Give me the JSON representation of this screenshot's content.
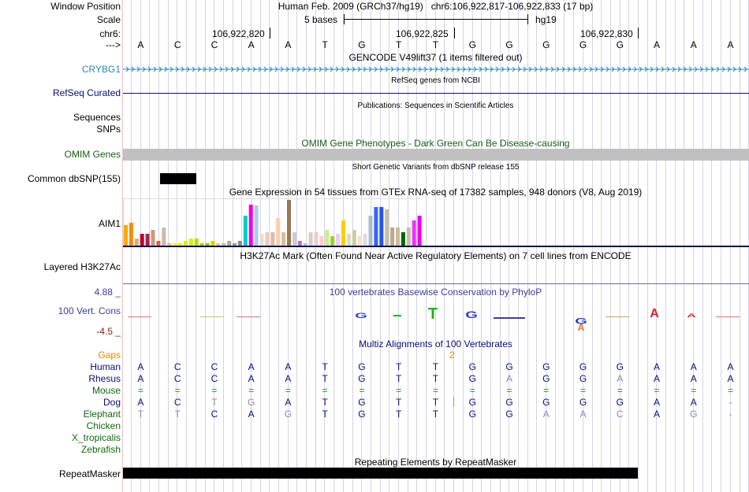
{
  "header": {
    "window_position_label": "Window Position",
    "window_position_value": "Human Feb. 2009 (GRCh37/hg19)   chr6:106,922,817-106,922,833 (17 bp)",
    "scale_label": "Scale",
    "scale_bar_text": "5 bases",
    "scale_assembly": "hg19",
    "chrom_label": "chr6:",
    "direction_label": "--->",
    "coords": [
      "106,922,820",
      "106,922,825",
      "106,922,830"
    ]
  },
  "bases": [
    "A",
    "C",
    "C",
    "A",
    "A",
    "T",
    "G",
    "T",
    "T",
    "G",
    "G",
    "G",
    "G",
    "G",
    "A",
    "A",
    "A"
  ],
  "tracks": {
    "gencode": {
      "title": "GENCODE V49lift37 (1 items filtered out)",
      "label": "CRYBG1",
      "color": "#2d88b5"
    },
    "refseq": {
      "title": "RefSeq genes from NCBI",
      "label": "RefSeq Curated",
      "color": "#0c0c78"
    },
    "publications": {
      "title": "Publications: Sequences in Scientific Articles",
      "label_line1": "Sequences",
      "label_line2": "SNPs"
    },
    "omim": {
      "title": "OMIM Gene Phenotypes - Dark Green Can Be Disease-causing",
      "label": "OMIM Genes",
      "color": "#1a5c1a"
    },
    "dbsnp": {
      "title": "Short Genetic Variants from dbSNP release 155",
      "label": "Common dbSNP(155)"
    },
    "gtex": {
      "title": "Gene Expression in 54 tissues from GTEx RNA-seq of 17382 samples, 948 donors (V8, Aug 2019)",
      "label": "AIM1",
      "values": [
        0.45,
        0.5,
        0.15,
        0.25,
        0.25,
        0.35,
        0.1,
        0.4,
        0.05,
        0.05,
        0.05,
        0.1,
        0.15,
        0.15,
        0.05,
        0.05,
        0.1,
        0.05,
        0.05,
        0.1,
        0.05,
        0.1,
        0.65,
        0.9,
        0.88,
        0.25,
        0.3,
        0.3,
        0.6,
        0.3,
        1.0,
        0.3,
        0.1,
        0.05,
        0.3,
        0.3,
        0.2,
        0.35,
        0.2,
        0.25,
        0.55,
        0.25,
        0.35,
        0.2,
        0.25,
        0.65,
        0.85,
        0.85,
        0.8,
        0.4,
        0.4,
        0.3,
        0.4,
        0.55,
        0.65
      ],
      "colors": [
        "#ffaa00",
        "#ff8800",
        "#ddaa77",
        "#bb0033",
        "#aa2255",
        "#cc9977",
        "#cc6655",
        "#ccbbaa",
        "#ddbb99",
        "#ffff00",
        "#eeee00",
        "#ddee00",
        "#ccee22",
        "#bbdd00",
        "#aacc00",
        "#99bb00",
        "#ddcc00",
        "#cccc99",
        "#bbbbaa",
        "#aaaa99",
        "#999999",
        "#888888",
        "#00cccc",
        "#ee00ee",
        "#aaccee",
        "#eeddcc",
        "#eeccbb",
        "#ddbbaa",
        "#ffccaa",
        "#ddbb99",
        "#997755",
        "#cccccc",
        "#aa77cc",
        "#99ccee",
        "#ddccbb",
        "#eecccc",
        "#ffcccc",
        "#ccee88",
        "#99cc33",
        "#eeccee",
        "#ffcc00",
        "#ddddbb",
        "#ccccaa",
        "#ffddcc",
        "#dddddd",
        "#aabbcc",
        "#3366ff",
        "#2255ee",
        "#ccbbaa",
        "#bbaa88",
        "#ccbb99",
        "#006600",
        "#ccbbaa",
        "#ee33ff",
        "#ee00ee"
      ]
    },
    "h3k27ac": {
      "title": "H3K27Ac Mark (Often Found Near Active Regulatory Elements) on 7 cell lines from ENCODE",
      "label": "Layered H3K27Ac",
      "color": "#2d2d7a"
    },
    "phylop": {
      "title": "100 vertebrates Basewise Conservation by PhyloP",
      "label": "100 Vert. Cons",
      "max": "4.88 _",
      "min": "-4.5 _",
      "title_color": "#3d3d99",
      "min_color": "#8b1a1a"
    },
    "multiz": {
      "title": "Multiz Alignments of 100 Vertebrates",
      "gaps_label": "Gaps",
      "gaps_value": "2",
      "species": [
        {
          "name": "Human",
          "color": "#0c0c78",
          "row": [
            "A",
            "C",
            "C",
            "A",
            "A",
            "T",
            "G",
            "T",
            "T",
            "G",
            "G",
            "G",
            "G",
            "G",
            "A",
            "A",
            "A"
          ]
        },
        {
          "name": "Rhesus",
          "color": "#0c0c78",
          "row": [
            "A",
            "C",
            "C",
            "A",
            "A",
            "T",
            "G",
            "T",
            "T",
            "G",
            "A",
            "G",
            "G",
            "A",
            "A",
            "A",
            "A"
          ]
        },
        {
          "name": "Mouse",
          "color": "#0c6c0c",
          "row": [
            "=",
            "=",
            "=",
            "=",
            "=",
            "=",
            "=",
            "=",
            "=",
            "=",
            "=",
            "=",
            "=",
            "=",
            "=",
            "=",
            "="
          ]
        },
        {
          "name": "Dog",
          "color": "#0c0c78",
          "row": [
            "A",
            "C",
            "T",
            "G",
            "A",
            "T",
            "G",
            "T",
            "T",
            "G",
            "G",
            "G",
            "G",
            "G",
            "A",
            "A",
            "-"
          ]
        },
        {
          "name": "Elephant",
          "color": "#0c6c0c",
          "row": [
            "T",
            "T",
            "C",
            "A",
            "G",
            "T",
            "G",
            "T",
            "T",
            "G",
            "G",
            "A",
            "A",
            "C",
            "A",
            "G",
            "-"
          ]
        },
        {
          "name": "Chicken",
          "color": "#0c6c0c",
          "row": []
        },
        {
          "name": "X_tropicalis",
          "color": "#0c6c0c",
          "row": []
        },
        {
          "name": "Zebrafish",
          "color": "#0c6c0c",
          "row": []
        }
      ]
    },
    "repeatmasker": {
      "title": "Repeating Elements by RepeatMasker",
      "label": "RepeatMasker"
    }
  }
}
